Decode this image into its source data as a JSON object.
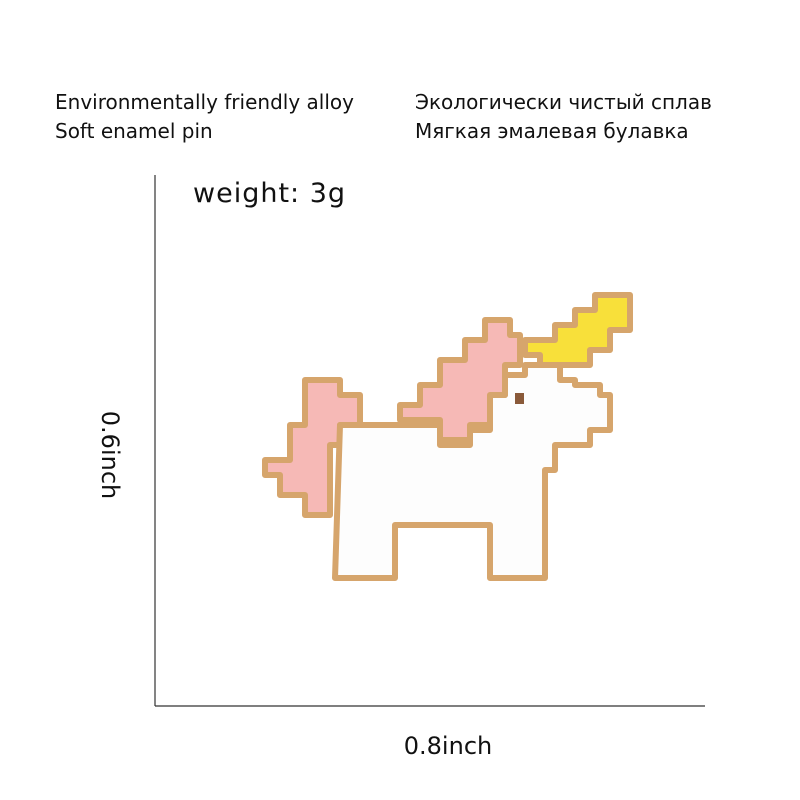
{
  "header": {
    "en": [
      "Environmentally friendly alloy",
      "Soft enamel pin"
    ],
    "ru": [
      "Экологически чистый сплав",
      "Мягкая эмалевая булавка"
    ]
  },
  "weight": "weight: 3g",
  "dimensions": {
    "height": "0.6inch",
    "width": "0.8inch"
  }
}
